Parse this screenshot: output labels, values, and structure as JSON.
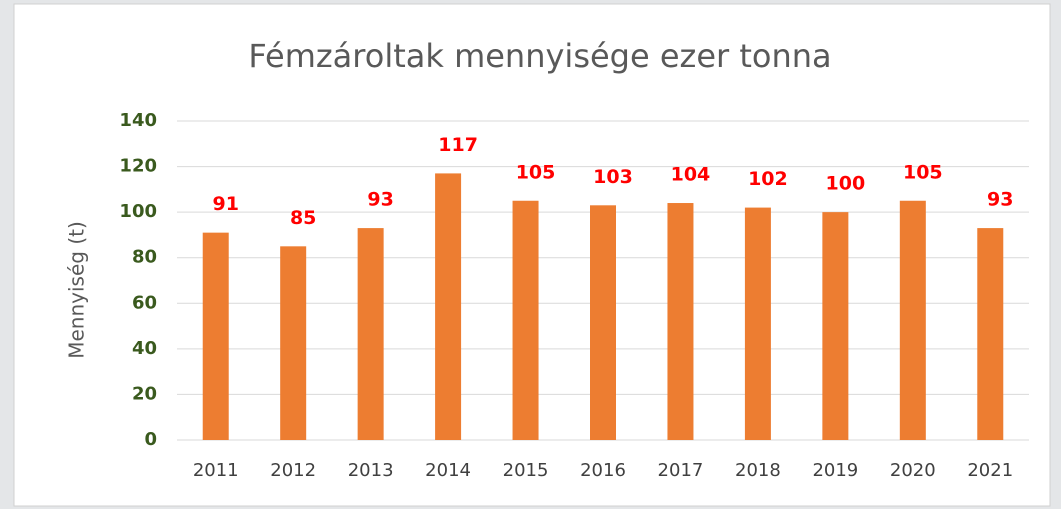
{
  "chart_data": {
    "type": "bar",
    "title": "Fémzároltak mennyisége ezer tonna",
    "y_label": "Mennyiség (t)",
    "categories": [
      "2011",
      "2012",
      "2013",
      "2014",
      "2015",
      "2016",
      "2017",
      "2018",
      "2019",
      "2020",
      "2021"
    ],
    "values": [
      91,
      85,
      93,
      117,
      105,
      103,
      104,
      102,
      100,
      105,
      93
    ],
    "color": "#ed7d31",
    "ylim": [
      0,
      140
    ],
    "yticks": [
      0,
      20,
      40,
      60,
      80,
      100,
      120,
      140
    ],
    "grid": true
  }
}
